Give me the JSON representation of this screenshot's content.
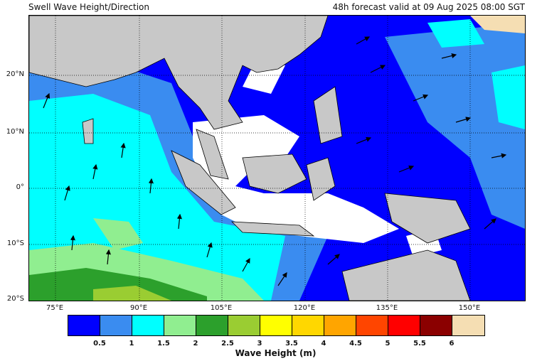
{
  "title_left": "Swell Wave Height/Direction",
  "title_right": "48h forecast valid at 09 Aug 2025 08:00 SGT",
  "y_labels": [
    "20°N",
    "10°N",
    "0°",
    "10°S",
    "20°S"
  ],
  "x_labels": [
    "75°E",
    "90°E",
    "105°E",
    "120°E",
    "135°E",
    "150°E"
  ],
  "colorbar": {
    "colors": [
      "#0000ff",
      "#3a8cf0",
      "#00ffff",
      "#90ee90",
      "#2ca02c",
      "#9acd32",
      "#ffff00",
      "#ffd700",
      "#ffa500",
      "#ff4500",
      "#ff0000",
      "#8b0000",
      "#f5deb3"
    ],
    "ticks": [
      "0.5",
      "1",
      "1.5",
      "2",
      "2.5",
      "3",
      "3.5",
      "4",
      "4.5",
      "5",
      "5.5",
      "6"
    ],
    "title": "Wave Height (m)"
  },
  "colors": {
    "land": "#c8c8c8",
    "grid": "#000000",
    "arrow": "#000000"
  }
}
